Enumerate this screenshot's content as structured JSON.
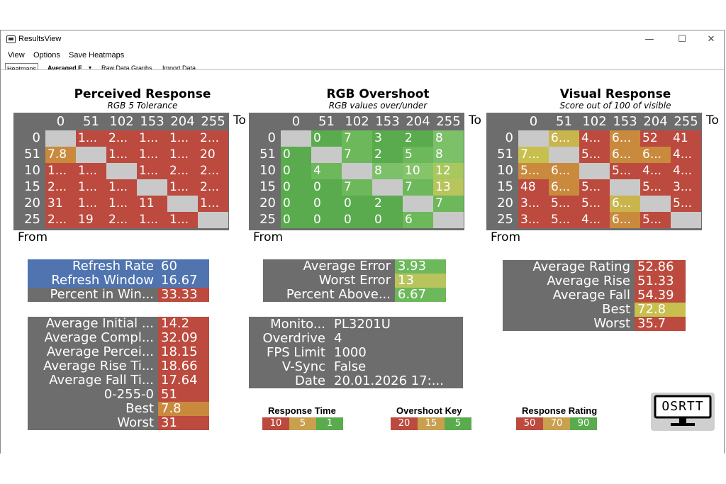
{
  "window": {
    "title": "ResultsView",
    "minimize": "—",
    "maximize": "☐",
    "close": "✕"
  },
  "menu": [
    "View",
    "Options",
    "Save Heatmaps"
  ],
  "tabs": [
    "Heatmaps",
    "Averaged F",
    "Raw Data Graphs",
    "Import Data"
  ],
  "heatmaps": [
    {
      "title": "Perceived Response",
      "subtitle": "RGB 5 Tolerance",
      "cols": [
        "0",
        "51",
        "102",
        "153",
        "204",
        "255"
      ],
      "rows": [
        "0",
        "51",
        "10",
        "15",
        "20",
        "25"
      ],
      "to": "To",
      "from": "From",
      "cells": [
        [
          "",
          "1...",
          "2...",
          "1...",
          "1...",
          "2..."
        ],
        [
          "7.8",
          "",
          "1...",
          "1...",
          "1...",
          "20"
        ],
        [
          "1...",
          "1...",
          "",
          "1...",
          "2...",
          "2..."
        ],
        [
          "2...",
          "1...",
          "1...",
          "",
          "1...",
          "2..."
        ],
        [
          "31",
          "1...",
          "1...",
          "11",
          "",
          "1..."
        ],
        [
          "2...",
          "19",
          "2...",
          "1...",
          "1...",
          ""
        ]
      ],
      "colors": [
        [
          "#c9c9c9",
          "#bc4a3e",
          "#bc4a3e",
          "#bc4a3e",
          "#bc4a3e",
          "#bc4a3e"
        ],
        [
          "#c98a3e",
          "#c9c9c9",
          "#bc4a3e",
          "#bc4a3e",
          "#bc4a3e",
          "#bc4a3e"
        ],
        [
          "#bc4a3e",
          "#bc4a3e",
          "#c9c9c9",
          "#bc4a3e",
          "#bc4a3e",
          "#bc4a3e"
        ],
        [
          "#bc4a3e",
          "#bc4a3e",
          "#bc4a3e",
          "#c9c9c9",
          "#bc4a3e",
          "#bc4a3e"
        ],
        [
          "#bc4a3e",
          "#bc4a3e",
          "#bc4a3e",
          "#bc4a3e",
          "#c9c9c9",
          "#bc4a3e"
        ],
        [
          "#bc4a3e",
          "#bc4a3e",
          "#bc4a3e",
          "#bc4a3e",
          "#bc4a3e",
          "#c9c9c9"
        ]
      ]
    },
    {
      "title": "RGB Overshoot",
      "subtitle": "RGB values over/under",
      "cols": [
        "0",
        "51",
        "102",
        "153",
        "204",
        "255"
      ],
      "rows": [
        "0",
        "51",
        "10",
        "15",
        "20",
        "25"
      ],
      "to": "To",
      "from": "From",
      "cells": [
        [
          "",
          "0",
          "7",
          "3",
          "2",
          "8"
        ],
        [
          "0",
          "",
          "7",
          "2",
          "5",
          "8"
        ],
        [
          "0",
          "4",
          "",
          "8",
          "10",
          "12"
        ],
        [
          "0",
          "0",
          "7",
          "",
          "7",
          "13"
        ],
        [
          "0",
          "0",
          "0",
          "2",
          "",
          "7"
        ],
        [
          "0",
          "0",
          "0",
          "0",
          "6",
          ""
        ]
      ],
      "colors": [
        [
          "#c9c9c9",
          "#5aab4e",
          "#6cb85a",
          "#5aab4e",
          "#5aab4e",
          "#7cc06a"
        ],
        [
          "#5aab4e",
          "#c9c9c9",
          "#6cb85a",
          "#5aab4e",
          "#6cb85a",
          "#7cc06a"
        ],
        [
          "#5aab4e",
          "#6cb85a",
          "#c9c9c9",
          "#7cc06a",
          "#86c46a",
          "#a8c85e"
        ],
        [
          "#5aab4e",
          "#5aab4e",
          "#6cb85a",
          "#c9c9c9",
          "#6cb85a",
          "#b8c45c"
        ],
        [
          "#5aab4e",
          "#5aab4e",
          "#5aab4e",
          "#5aab4e",
          "#c9c9c9",
          "#6cb85a"
        ],
        [
          "#5aab4e",
          "#5aab4e",
          "#5aab4e",
          "#5aab4e",
          "#6cb85a",
          "#c9c9c9"
        ]
      ]
    },
    {
      "title": "Visual Response",
      "subtitle": "Score out of 100 of visible",
      "cols": [
        "0",
        "51",
        "102",
        "153",
        "204",
        "255"
      ],
      "rows": [
        "0",
        "51",
        "10",
        "15",
        "20",
        "25"
      ],
      "to": "To",
      "from": "From",
      "cells": [
        [
          "",
          "6...",
          "4...",
          "6...",
          "52",
          "41"
        ],
        [
          "7...",
          "",
          "5...",
          "6...",
          "6...",
          "4..."
        ],
        [
          "5...",
          "6...",
          "",
          "5...",
          "4...",
          "4..."
        ],
        [
          "48",
          "6...",
          "5...",
          "",
          "5...",
          "3..."
        ],
        [
          "3...",
          "5...",
          "5...",
          "6...",
          "",
          "5..."
        ],
        [
          "3...",
          "5...",
          "4...",
          "6...",
          "5...",
          ""
        ]
      ],
      "colors": [
        [
          "#c9c9c9",
          "#c9b54e",
          "#bc4a3e",
          "#c98a3e",
          "#bc4a3e",
          "#bc4a3e"
        ],
        [
          "#c8c04e",
          "#c9c9c9",
          "#bc4a3e",
          "#c98a3e",
          "#c98a3e",
          "#bc4a3e"
        ],
        [
          "#c98a3e",
          "#c98a3e",
          "#c9c9c9",
          "#bc4a3e",
          "#bc4a3e",
          "#bc4a3e"
        ],
        [
          "#bc4a3e",
          "#c98a3e",
          "#bc4a3e",
          "#c9c9c9",
          "#bc4a3e",
          "#bc4a3e"
        ],
        [
          "#bc4a3e",
          "#bc4a3e",
          "#bc4a3e",
          "#c9b54e",
          "#c9c9c9",
          "#bc4a3e"
        ],
        [
          "#bc4a3e",
          "#bc4a3e",
          "#bc4a3e",
          "#c98a3e",
          "#bc4a3e",
          "#c9c9c9"
        ]
      ]
    }
  ],
  "refresh": [
    {
      "label": "Refresh Rate",
      "value": "60",
      "label_bg": "#4f74b0",
      "value_bg": "#4f74b0"
    },
    {
      "label": "Refresh Window",
      "value": "16.67",
      "label_bg": "#4f74b0",
      "value_bg": "#4f74b0"
    },
    {
      "label": "Percent in Win...",
      "value": "33.33",
      "label_bg": "#6d6d6d",
      "value_bg": "#bc4a3e"
    }
  ],
  "response_stats": [
    {
      "label": "Average Initial ...",
      "value": "14.2",
      "value_bg": "#bc4a3e"
    },
    {
      "label": "Average Compl...",
      "value": "32.09",
      "value_bg": "#bc4a3e"
    },
    {
      "label": "Average Percei...",
      "value": "18.15",
      "value_bg": "#bc4a3e"
    },
    {
      "label": "Average Rise Ti...",
      "value": "18.66",
      "value_bg": "#bc4a3e"
    },
    {
      "label": "Average Fall Ti...",
      "value": "17.64",
      "value_bg": "#bc4a3e"
    },
    {
      "label": "0-255-0",
      "value": "51",
      "value_bg": "#bc4a3e"
    },
    {
      "label": "Best",
      "value": "7.8",
      "value_bg": "#c98a3e"
    },
    {
      "label": "Worst",
      "value": "31",
      "value_bg": "#bc4a3e"
    }
  ],
  "overshoot_stats": [
    {
      "label": "Average Error",
      "value": "3.93",
      "value_bg": "#6cb85a"
    },
    {
      "label": "Worst Error",
      "value": "13",
      "value_bg": "#b8c45c"
    },
    {
      "label": "Percent Above...",
      "value": "6.67",
      "value_bg": "#6cb85a"
    }
  ],
  "monitor_info": [
    {
      "label": "Monito...",
      "value": "PL3201U"
    },
    {
      "label": "Overdrive",
      "value": "4"
    },
    {
      "label": "FPS Limit",
      "value": "1000"
    },
    {
      "label": "V-Sync",
      "value": "False"
    },
    {
      "label": "Date",
      "value": "20.01.2026 17:..."
    }
  ],
  "visual_stats": [
    {
      "label": "Average Rating",
      "value": "52.86",
      "value_bg": "#bc4a3e"
    },
    {
      "label": "Average Rise",
      "value": "51.33",
      "value_bg": "#bc4a3e"
    },
    {
      "label": "Average Fall",
      "value": "54.39",
      "value_bg": "#bc4a3e"
    },
    {
      "label": "Best",
      "value": "72.8",
      "value_bg": "#c8c04e"
    },
    {
      "label": "Worst",
      "value": "35.7",
      "value_bg": "#bc4a3e"
    }
  ],
  "legends": [
    {
      "title": "Response Time",
      "items": [
        {
          "text": "10",
          "color": "#bc4a3e"
        },
        {
          "text": "5",
          "color": "#c9a04e"
        },
        {
          "text": "1",
          "color": "#5aab4e"
        }
      ]
    },
    {
      "title": "Overshoot Key",
      "items": [
        {
          "text": "20",
          "color": "#bc4a3e"
        },
        {
          "text": "15",
          "color": "#c9a04e"
        },
        {
          "text": "5",
          "color": "#5aab4e"
        }
      ]
    },
    {
      "title": "Response Rating",
      "items": [
        {
          "text": "50",
          "color": "#bc4a3e"
        },
        {
          "text": "70",
          "color": "#c9a04e"
        },
        {
          "text": "90",
          "color": "#5aab4e"
        }
      ]
    }
  ],
  "logo": {
    "text": "OSRTT"
  }
}
